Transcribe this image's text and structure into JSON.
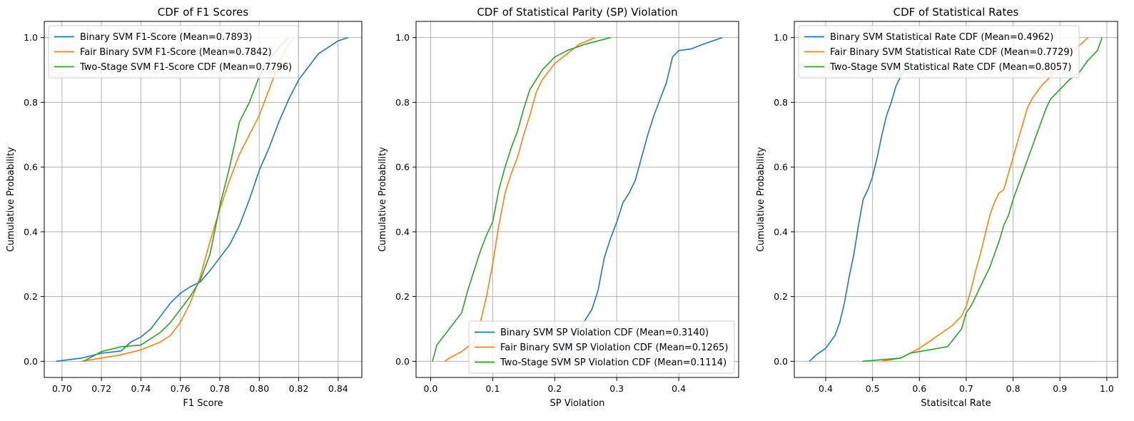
{
  "chart_data": [
    {
      "type": "line",
      "title": "CDF of F1 Scores",
      "xlabel": "F1 Score",
      "ylabel": "Cumulative Probability",
      "xlim": [
        0.691,
        0.852
      ],
      "ylim": [
        -0.05,
        1.05
      ],
      "xticks": [
        0.7,
        0.72,
        0.74,
        0.76,
        0.78,
        0.8,
        0.82,
        0.84
      ],
      "xtick_labels": [
        "0.70",
        "0.72",
        "0.74",
        "0.76",
        "0.78",
        "0.80",
        "0.82",
        "0.84"
      ],
      "yticks": [
        0.0,
        0.2,
        0.4,
        0.6,
        0.8,
        1.0
      ],
      "ytick_labels": [
        "0.0",
        "0.2",
        "0.4",
        "0.6",
        "0.8",
        "1.0"
      ],
      "grid": true,
      "legend": "upper-left",
      "series": [
        {
          "name": "Binary SVM F1-Score (Mean=0.7893)",
          "color": "#1f77b4",
          "x": [
            0.697,
            0.71,
            0.72,
            0.73,
            0.735,
            0.74,
            0.745,
            0.75,
            0.755,
            0.76,
            0.765,
            0.77,
            0.775,
            0.78,
            0.785,
            0.79,
            0.795,
            0.8,
            0.805,
            0.81,
            0.815,
            0.82,
            0.825,
            0.83,
            0.835,
            0.84,
            0.845
          ],
          "y": [
            0.0,
            0.01,
            0.025,
            0.032,
            0.06,
            0.075,
            0.1,
            0.14,
            0.18,
            0.21,
            0.23,
            0.245,
            0.28,
            0.32,
            0.36,
            0.42,
            0.5,
            0.59,
            0.66,
            0.74,
            0.81,
            0.87,
            0.91,
            0.95,
            0.97,
            0.99,
            1.0
          ]
        },
        {
          "name": "Fair Binary SVM F1-Score (Mean=0.7842)",
          "color": "#ff7f0e",
          "x": [
            0.71,
            0.72,
            0.73,
            0.74,
            0.75,
            0.755,
            0.76,
            0.765,
            0.77,
            0.775,
            0.78,
            0.785,
            0.79,
            0.795,
            0.8,
            0.805,
            0.81,
            0.815,
            0.818
          ],
          "y": [
            0.0,
            0.01,
            0.02,
            0.035,
            0.06,
            0.08,
            0.12,
            0.18,
            0.26,
            0.37,
            0.47,
            0.56,
            0.64,
            0.7,
            0.76,
            0.84,
            0.92,
            0.98,
            1.0
          ]
        },
        {
          "name": "Two-Stage SVM F1-Score CDF (Mean=0.7796)",
          "color": "#2ca02c",
          "x": [
            0.711,
            0.72,
            0.73,
            0.74,
            0.745,
            0.75,
            0.755,
            0.76,
            0.765,
            0.77,
            0.775,
            0.778,
            0.78,
            0.785,
            0.79,
            0.795,
            0.8,
            0.805,
            0.81,
            0.815
          ],
          "y": [
            0.0,
            0.03,
            0.045,
            0.05,
            0.07,
            0.09,
            0.12,
            0.16,
            0.2,
            0.25,
            0.33,
            0.42,
            0.48,
            0.6,
            0.74,
            0.8,
            0.88,
            0.93,
            0.97,
            1.0
          ]
        }
      ]
    },
    {
      "type": "line",
      "title": "CDF of Statistical Parity (SP) Violation",
      "xlabel": "SP Violation",
      "ylabel": "Cumulative Probability",
      "xlim": [
        -0.0235,
        0.4965
      ],
      "ylim": [
        -0.05,
        1.05
      ],
      "xticks": [
        0.0,
        0.1,
        0.2,
        0.3,
        0.4
      ],
      "xtick_labels": [
        "0.0",
        "0.1",
        "0.2",
        "0.3",
        "0.4"
      ],
      "yticks": [
        0.0,
        0.2,
        0.4,
        0.6,
        0.8,
        1.0
      ],
      "ytick_labels": [
        "0.0",
        "0.2",
        "0.4",
        "0.6",
        "0.8",
        "1.0"
      ],
      "grid": true,
      "legend": "lower-right",
      "series": [
        {
          "name": "Binary SVM SP Violation CDF (Mean=0.3140)",
          "color": "#1f77b4",
          "x": [
            0.2,
            0.22,
            0.24,
            0.26,
            0.27,
            0.28,
            0.29,
            0.3,
            0.31,
            0.32,
            0.33,
            0.34,
            0.35,
            0.36,
            0.37,
            0.38,
            0.39,
            0.4,
            0.42,
            0.44,
            0.47
          ],
          "y": [
            0.0,
            0.05,
            0.1,
            0.16,
            0.22,
            0.32,
            0.38,
            0.43,
            0.49,
            0.52,
            0.56,
            0.63,
            0.7,
            0.76,
            0.81,
            0.86,
            0.94,
            0.96,
            0.965,
            0.98,
            1.0
          ]
        },
        {
          "name": "Fair Binary SVM SP Violation CDF (Mean=0.1265)",
          "color": "#ff7f0e",
          "x": [
            0.023,
            0.03,
            0.05,
            0.07,
            0.08,
            0.09,
            0.1,
            0.11,
            0.12,
            0.13,
            0.14,
            0.15,
            0.16,
            0.17,
            0.18,
            0.2,
            0.22,
            0.24,
            0.265
          ],
          "y": [
            0.0,
            0.01,
            0.03,
            0.06,
            0.12,
            0.2,
            0.3,
            0.42,
            0.52,
            0.58,
            0.63,
            0.7,
            0.76,
            0.83,
            0.87,
            0.92,
            0.95,
            0.98,
            1.0
          ]
        },
        {
          "name": "Two-Stage SVM SP Violation CDF (Mean=0.1114)",
          "color": "#2ca02c",
          "x": [
            0.003,
            0.01,
            0.03,
            0.05,
            0.06,
            0.07,
            0.08,
            0.09,
            0.1,
            0.11,
            0.12,
            0.13,
            0.14,
            0.15,
            0.16,
            0.17,
            0.18,
            0.2,
            0.22,
            0.25,
            0.29
          ],
          "y": [
            0.0,
            0.05,
            0.1,
            0.15,
            0.22,
            0.28,
            0.34,
            0.39,
            0.43,
            0.53,
            0.6,
            0.66,
            0.71,
            0.78,
            0.84,
            0.87,
            0.9,
            0.94,
            0.96,
            0.98,
            1.0
          ]
        }
      ]
    },
    {
      "type": "line",
      "title": "CDF of Statistical Rates",
      "xlabel": "Statisitcal Rate",
      "ylabel": "Cumulative Probability",
      "xlim": [
        0.333,
        1.023
      ],
      "ylim": [
        -0.05,
        1.05
      ],
      "xticks": [
        0.4,
        0.5,
        0.6,
        0.7,
        0.8,
        0.9,
        1.0
      ],
      "xtick_labels": [
        "0.4",
        "0.5",
        "0.6",
        "0.7",
        "0.8",
        "0.9",
        "1.0"
      ],
      "yticks": [
        0.0,
        0.2,
        0.4,
        0.6,
        0.8,
        1.0
      ],
      "ytick_labels": [
        "0.0",
        "0.2",
        "0.4",
        "0.6",
        "0.8",
        "1.0"
      ],
      "grid": true,
      "legend": "upper-left",
      "series": [
        {
          "name": "Binary SVM Statistical Rate CDF (Mean=0.4962)",
          "color": "#1f77b4",
          "x": [
            0.365,
            0.38,
            0.4,
            0.42,
            0.43,
            0.44,
            0.45,
            0.46,
            0.47,
            0.48,
            0.49,
            0.5,
            0.51,
            0.52,
            0.53,
            0.54,
            0.55,
            0.56,
            0.58,
            0.6,
            0.61
          ],
          "y": [
            0.0,
            0.02,
            0.04,
            0.08,
            0.12,
            0.18,
            0.26,
            0.33,
            0.42,
            0.5,
            0.53,
            0.57,
            0.63,
            0.7,
            0.76,
            0.8,
            0.85,
            0.88,
            0.93,
            0.98,
            1.0
          ]
        },
        {
          "name": "Fair Binary SVM Statistical Rate CDF (Mean=0.7729)",
          "color": "#ff7f0e",
          "x": [
            0.52,
            0.56,
            0.6,
            0.64,
            0.67,
            0.69,
            0.7,
            0.71,
            0.72,
            0.73,
            0.74,
            0.75,
            0.76,
            0.77,
            0.78,
            0.79,
            0.8,
            0.81,
            0.82,
            0.83,
            0.84,
            0.85,
            0.86,
            0.88,
            0.9,
            0.93,
            0.96
          ],
          "y": [
            0.0,
            0.01,
            0.04,
            0.08,
            0.11,
            0.14,
            0.17,
            0.22,
            0.28,
            0.33,
            0.39,
            0.45,
            0.49,
            0.52,
            0.53,
            0.58,
            0.63,
            0.68,
            0.73,
            0.78,
            0.81,
            0.83,
            0.85,
            0.88,
            0.92,
            0.96,
            1.0
          ]
        },
        {
          "name": "Two-Stage SVM Statistical Rate CDF (Mean=0.8057)",
          "color": "#2ca02c",
          "x": [
            0.478,
            0.52,
            0.56,
            0.58,
            0.62,
            0.66,
            0.69,
            0.7,
            0.71,
            0.72,
            0.73,
            0.74,
            0.75,
            0.76,
            0.77,
            0.78,
            0.79,
            0.8,
            0.81,
            0.82,
            0.83,
            0.84,
            0.85,
            0.86,
            0.87,
            0.88,
            0.9,
            0.92,
            0.94,
            0.96,
            0.98,
            0.99
          ],
          "y": [
            0.0,
            0.005,
            0.01,
            0.025,
            0.035,
            0.045,
            0.1,
            0.15,
            0.17,
            0.2,
            0.23,
            0.26,
            0.29,
            0.33,
            0.37,
            0.42,
            0.45,
            0.5,
            0.54,
            0.58,
            0.62,
            0.66,
            0.7,
            0.74,
            0.78,
            0.81,
            0.84,
            0.87,
            0.89,
            0.93,
            0.96,
            1.0
          ]
        }
      ]
    }
  ]
}
